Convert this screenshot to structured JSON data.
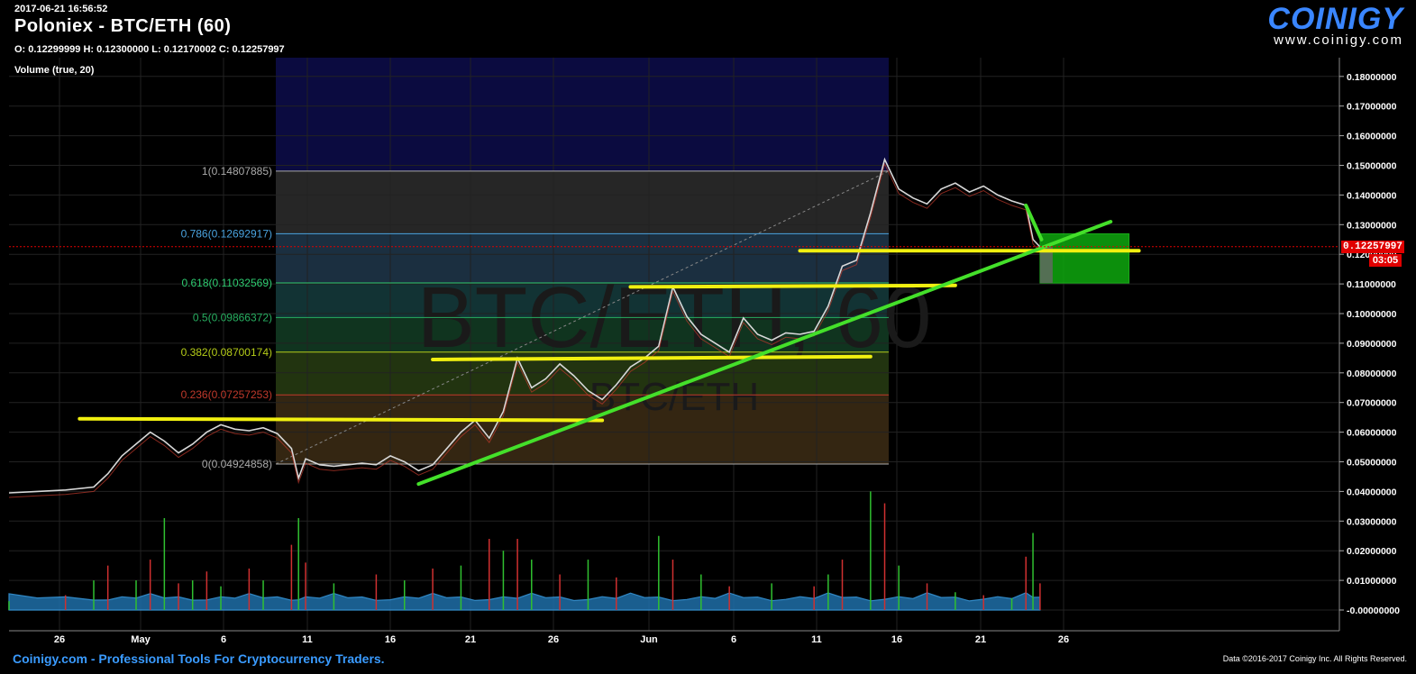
{
  "header": {
    "timestamp": "2017-06-21 16:56:52",
    "title": "Poloniex - BTC/ETH (60)",
    "ohlc": "O: 0.12299999 H: 0.12300000 L: 0.12170002 C: 0.12257997",
    "volume_label": "Volume (true, 20)"
  },
  "logo": {
    "word": "COINIGY",
    "url": "www.coinigy.com"
  },
  "footer": {
    "left": "Coinigy.com - Professional Tools For Cryptocurrency Traders.",
    "right": "Data ©2016-2017 Coinigy Inc. All Rights Reserved."
  },
  "watermark": {
    "main": "BTC/ETH, 60",
    "sub": "BTC/ETH"
  },
  "badges": {
    "price": "0.12257997",
    "countdown": "03:05",
    "color": "#e00000"
  },
  "chart_data": {
    "type": "line",
    "x_tick_labels": [
      "26",
      "May",
      "6",
      "11",
      "16",
      "21",
      "26",
      "Jun",
      "6",
      "11",
      "16",
      "21",
      "26"
    ],
    "y_tick_labels": [
      "0.18000000",
      "0.17000000",
      "0.16000000",
      "0.15000000",
      "0.14000000",
      "0.13000000",
      "0.12000000",
      "0.11000000",
      "0.10000000",
      "0.09000000",
      "0.08000000",
      "0.07000000",
      "0.06000000",
      "0.05000000",
      "0.04000000",
      "0.03000000",
      "0.02000000",
      "0.01000000",
      "-0.00000000"
    ],
    "ylim": [
      -0.005,
      0.19
    ],
    "last_price": 0.12257997,
    "fibonacci": [
      {
        "label": "1(0.14807885)",
        "level": 1,
        "value": 0.14807885,
        "color": "#aaaaaa"
      },
      {
        "label": "0.786(0.12692917)",
        "level": 0.786,
        "value": 0.12692917,
        "color": "#4aa3df"
      },
      {
        "label": "0.618(0.11032569)",
        "level": 0.618,
        "value": 0.11032569,
        "color": "#2ecc71"
      },
      {
        "label": "0.5(0.09866372)",
        "level": 0.5,
        "value": 0.09866372,
        "color": "#27ae60"
      },
      {
        "label": "0.382(0.08700174)",
        "level": 0.382,
        "value": 0.08700174,
        "color": "#b5cc18"
      },
      {
        "label": "0.236(0.07257253)",
        "level": 0.236,
        "value": 0.07257253,
        "color": "#c0392b"
      },
      {
        "label": "0(0.04924858)",
        "level": 0,
        "value": 0.04924858,
        "color": "#aaaaaa"
      }
    ],
    "price_series": [
      [
        -6,
        0.0395
      ],
      [
        -4,
        0.04
      ],
      [
        -2,
        0.0405
      ],
      [
        0,
        0.0415
      ],
      [
        1,
        0.046
      ],
      [
        2,
        0.052
      ],
      [
        3,
        0.056
      ],
      [
        4,
        0.06
      ],
      [
        5,
        0.057
      ],
      [
        6,
        0.053
      ],
      [
        7,
        0.056
      ],
      [
        8,
        0.06
      ],
      [
        9,
        0.0625
      ],
      [
        10,
        0.061
      ],
      [
        11,
        0.0605
      ],
      [
        12,
        0.0615
      ],
      [
        13,
        0.0595
      ],
      [
        14,
        0.0545
      ],
      [
        14.5,
        0.0445
      ],
      [
        15,
        0.051
      ],
      [
        16,
        0.049
      ],
      [
        17,
        0.0485
      ],
      [
        18,
        0.049
      ],
      [
        19,
        0.0495
      ],
      [
        20,
        0.049
      ],
      [
        21,
        0.052
      ],
      [
        22,
        0.05
      ],
      [
        23,
        0.047
      ],
      [
        24,
        0.049
      ],
      [
        25,
        0.0545
      ],
      [
        26,
        0.06
      ],
      [
        27,
        0.064
      ],
      [
        28,
        0.058
      ],
      [
        29,
        0.067
      ],
      [
        30,
        0.085
      ],
      [
        31,
        0.075
      ],
      [
        32,
        0.078
      ],
      [
        33,
        0.083
      ],
      [
        34,
        0.079
      ],
      [
        35,
        0.074
      ],
      [
        36,
        0.071
      ],
      [
        37,
        0.076
      ],
      [
        38,
        0.082
      ],
      [
        39,
        0.085
      ],
      [
        40,
        0.089
      ],
      [
        41,
        0.109
      ],
      [
        42,
        0.099
      ],
      [
        43,
        0.093
      ],
      [
        44,
        0.09
      ],
      [
        45,
        0.087
      ],
      [
        46,
        0.0985
      ],
      [
        47,
        0.093
      ],
      [
        48,
        0.091
      ],
      [
        49,
        0.0935
      ],
      [
        50,
        0.093
      ],
      [
        51,
        0.094
      ],
      [
        52,
        0.1025
      ],
      [
        53,
        0.116
      ],
      [
        54,
        0.118
      ],
      [
        55,
        0.134
      ],
      [
        56,
        0.152
      ],
      [
        57,
        0.142
      ],
      [
        58,
        0.139
      ],
      [
        59,
        0.137
      ],
      [
        60,
        0.142
      ],
      [
        61,
        0.144
      ],
      [
        62,
        0.141
      ],
      [
        63,
        0.143
      ],
      [
        64,
        0.14
      ],
      [
        65,
        0.138
      ],
      [
        66,
        0.1365
      ],
      [
        66.5,
        0.125
      ],
      [
        67,
        0.1225
      ]
    ],
    "volume_spikes": [
      [
        -6,
        0.003
      ],
      [
        -2,
        0.005
      ],
      [
        0,
        0.01
      ],
      [
        1,
        0.015
      ],
      [
        3,
        0.01
      ],
      [
        4,
        0.017
      ],
      [
        5,
        0.031
      ],
      [
        6,
        0.009
      ],
      [
        7,
        0.01
      ],
      [
        8,
        0.013
      ],
      [
        9,
        0.008
      ],
      [
        11,
        0.014
      ],
      [
        12,
        0.01
      ],
      [
        14,
        0.022
      ],
      [
        14.5,
        0.031
      ],
      [
        15,
        0.016
      ],
      [
        17,
        0.009
      ],
      [
        20,
        0.012
      ],
      [
        22,
        0.01
      ],
      [
        24,
        0.014
      ],
      [
        26,
        0.015
      ],
      [
        28,
        0.024
      ],
      [
        29,
        0.02
      ],
      [
        30,
        0.024
      ],
      [
        31,
        0.017
      ],
      [
        33,
        0.012
      ],
      [
        35,
        0.017
      ],
      [
        37,
        0.011
      ],
      [
        40,
        0.025
      ],
      [
        41,
        0.017
      ],
      [
        43,
        0.012
      ],
      [
        45,
        0.008
      ],
      [
        48,
        0.009
      ],
      [
        51,
        0.008
      ],
      [
        52,
        0.012
      ],
      [
        53,
        0.017
      ],
      [
        55,
        0.04
      ],
      [
        56,
        0.036
      ],
      [
        57,
        0.015
      ],
      [
        59,
        0.009
      ],
      [
        61,
        0.006
      ],
      [
        63,
        0.005
      ],
      [
        65,
        0.004
      ],
      [
        66,
        0.018
      ],
      [
        66.5,
        0.026
      ],
      [
        67,
        0.009
      ]
    ],
    "trend_lines": [
      {
        "name": "support-yellow-1",
        "color": "#f1f010",
        "x1": -1,
        "y1": 0.0645,
        "x2": 36,
        "y2": 0.064
      },
      {
        "name": "support-yellow-2",
        "color": "#f1f010",
        "x1": 24,
        "y1": 0.0845,
        "x2": 55,
        "y2": 0.0855
      },
      {
        "name": "support-yellow-3",
        "color": "#f1f010",
        "x1": 38,
        "y1": 0.109,
        "x2": 61,
        "y2": 0.1095
      },
      {
        "name": "support-yellow-4",
        "color": "#f1f010",
        "x1": 50,
        "y1": 0.1212,
        "x2": 74,
        "y2": 0.1212
      },
      {
        "name": "trend-green",
        "color": "#44e02a",
        "x1": 23,
        "y1": 0.0425,
        "x2": 72,
        "y2": 0.131
      },
      {
        "name": "drop-green",
        "color": "#44e02a",
        "x1": 66,
        "y1": 0.1365,
        "x2": 67.1,
        "y2": 0.125
      }
    ],
    "target_box": {
      "x1": 67,
      "x2": 73.3,
      "y1": 0.1103,
      "y2": 0.1269,
      "color": "#0fa80f"
    },
    "grid": true,
    "legend": "none"
  }
}
